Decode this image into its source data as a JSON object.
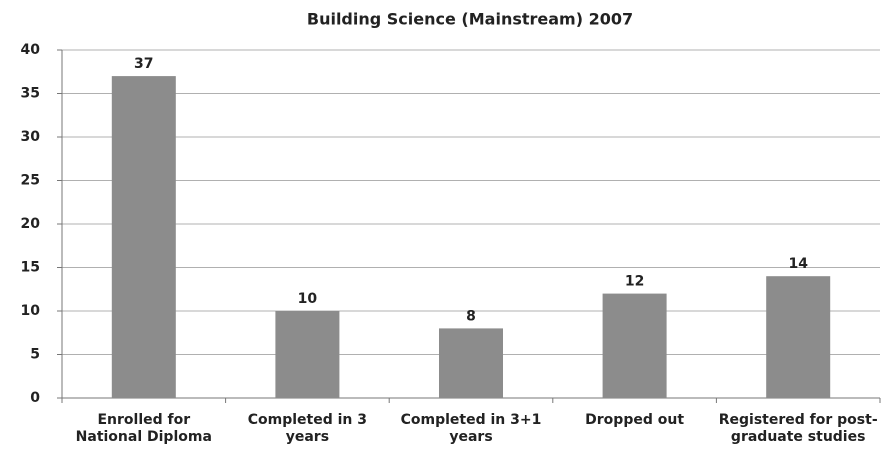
{
  "chart_data": {
    "type": "bar",
    "title": "Building Science (Mainstream)  2007",
    "categories": [
      "Enrolled for National Diploma",
      "Completed in 3 years",
      "Completed in 3+1 years",
      "Dropped out",
      "Registered for post-graduate studies"
    ],
    "values": [
      37,
      10,
      8,
      12,
      14
    ],
    "color": "#8c8c8c",
    "ylim": [
      0,
      40
    ],
    "yticks": [
      0,
      5,
      10,
      15,
      20,
      25,
      30,
      35,
      40
    ],
    "grid": true
  }
}
